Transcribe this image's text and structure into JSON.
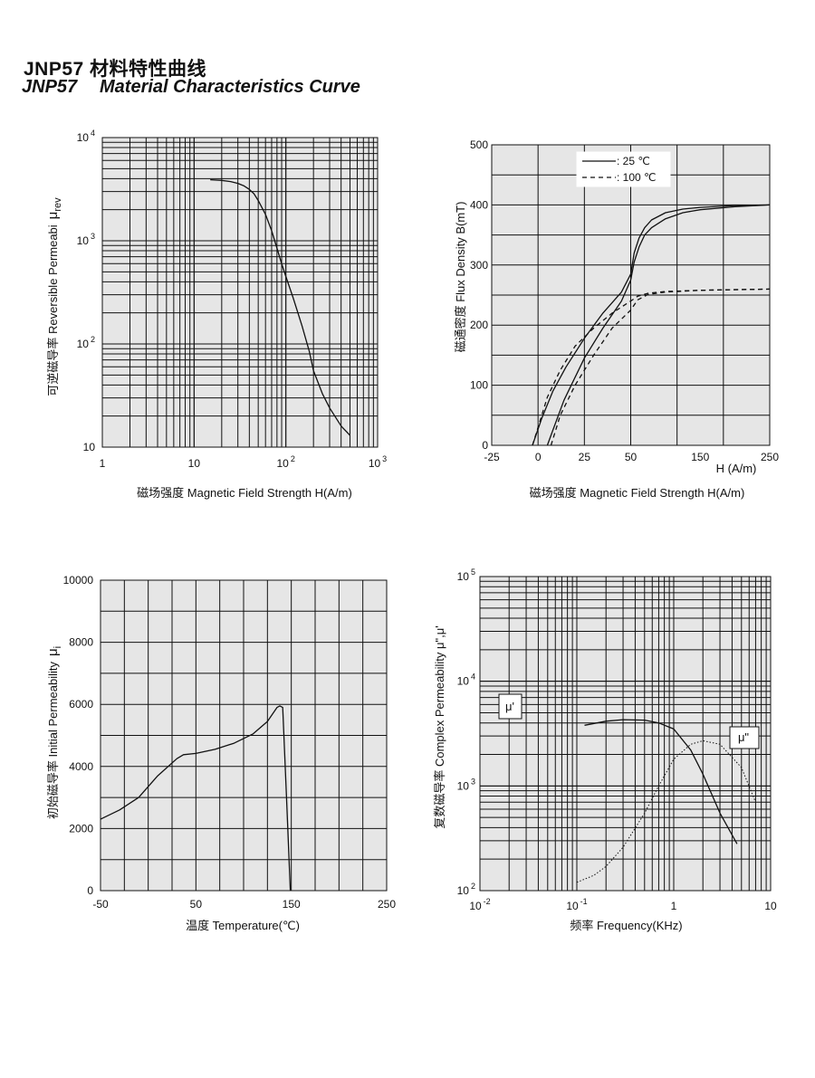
{
  "page": {
    "title_cn": "JNP57  材料特性曲线",
    "title_en_model": "JNP57",
    "title_en_text": "Material Characteristics Curve"
  },
  "chart_data": [
    {
      "type": "line",
      "xscale": "log",
      "yscale": "log",
      "xlim": [
        1,
        1000
      ],
      "ylim": [
        10,
        10000
      ],
      "xticks": [
        {
          "base": "1"
        },
        {
          "base": "10"
        },
        {
          "base": "10",
          "sup": "2"
        },
        {
          "base": "10",
          "sup": "3"
        }
      ],
      "yticks": [
        {
          "base": "10",
          "sup": "4"
        },
        {
          "base": "10",
          "sup": "3"
        },
        {
          "base": "10",
          "sup": "2"
        },
        {
          "base": "10"
        }
      ],
      "xlabel": "磁场强度  Magnetic Field Strength H(A/m)",
      "ylabel_cn": "可逆磁导率",
      "ylabel_en": "Reversible  Permeabi",
      "ylabel_sym": "μ",
      "ylabel_sub": "rev",
      "grid": true,
      "series": [
        {
          "x": [
            15,
            20,
            25,
            30,
            35,
            40,
            45,
            50,
            60,
            70,
            80,
            90,
            100,
            120,
            150,
            180,
            200,
            250,
            300,
            400,
            500
          ],
          "y": [
            3900,
            3850,
            3750,
            3600,
            3400,
            3150,
            2850,
            2450,
            1800,
            1250,
            850,
            600,
            450,
            280,
            150,
            85,
            55,
            33,
            24,
            16,
            13
          ]
        }
      ]
    },
    {
      "type": "line",
      "xlim": [
        -25,
        250
      ],
      "ylim": [
        0,
        500
      ],
      "xticks": [
        "-25",
        "0",
        "25",
        "50",
        "150",
        "250"
      ],
      "yticks": [
        "500",
        "400",
        "300",
        "200",
        "100",
        "0"
      ],
      "xunit": "H (A/m)",
      "xlabel": "磁场强度  Magnetic Field Strength H(A/m)",
      "ylabel_cn": "磁通密度",
      "ylabel_en": "Flux Density B(mT)",
      "grid": true,
      "legend": [
        "  : 25 ℃",
        "  : 100 ℃"
      ],
      "series": [
        {
          "name": ": 25 ℃",
          "style": "solid",
          "x": [
            -3,
            2,
            8,
            15,
            25,
            35,
            45,
            50,
            55,
            62,
            70,
            80,
            100,
            125,
            150,
            200,
            250
          ],
          "y": [
            0,
            45,
            90,
            130,
            178,
            220,
            255,
            285,
            320,
            345,
            362,
            375,
            387,
            393,
            396,
            399,
            400
          ]
        },
        {
          "name": ": 25 ℃",
          "style": "solid",
          "x": [
            5,
            8,
            14,
            25,
            35,
            45,
            50,
            55,
            62,
            70,
            80,
            100,
            125,
            150,
            200,
            250
          ],
          "y": [
            0,
            25,
            75,
            145,
            195,
            240,
            275,
            305,
            330,
            350,
            362,
            377,
            387,
            392,
            397,
            400
          ]
        },
        {
          "name": ": 100 ℃",
          "style": "dashed",
          "x": [
            -3,
            0,
            5,
            12,
            20,
            30,
            40,
            50,
            60,
            75,
            100,
            125,
            150,
            200,
            250
          ],
          "y": [
            0,
            30,
            80,
            125,
            165,
            195,
            220,
            240,
            248,
            253,
            256,
            257,
            258,
            259,
            260
          ]
        },
        {
          "name": ": 100 ℃",
          "style": "dashed",
          "x": [
            7,
            12,
            20,
            30,
            40,
            50,
            60,
            75,
            100,
            150,
            250
          ],
          "y": [
            0,
            50,
            100,
            150,
            195,
            225,
            242,
            251,
            255,
            258,
            260
          ]
        }
      ]
    },
    {
      "type": "line",
      "xlim": [
        -50,
        250
      ],
      "ylim": [
        0,
        10000
      ],
      "xticks": [
        "-50",
        "50",
        "150",
        "250"
      ],
      "yticks": [
        "10000",
        "8000",
        "6000",
        "4000",
        "2000",
        "0"
      ],
      "xlabel": "温度 Temperature(℃)",
      "ylabel_cn": "初始磁导率",
      "ylabel_en": "Initial  Permeability",
      "ylabel_sym": "μ",
      "ylabel_sub": "i",
      "grid": true,
      "series": [
        {
          "x": [
            -50,
            -30,
            -10,
            10,
            30,
            37,
            50,
            70,
            90,
            110,
            125,
            135,
            138,
            141,
            145,
            149
          ],
          "y": [
            2300,
            2600,
            3000,
            3700,
            4250,
            4380,
            4420,
            4550,
            4750,
            5050,
            5450,
            5900,
            5950,
            5900,
            3000,
            0
          ]
        }
      ]
    },
    {
      "type": "line",
      "xscale": "log",
      "yscale": "log",
      "xlim": [
        0.01,
        10
      ],
      "ylim": [
        100,
        100000
      ],
      "xticks": [
        {
          "base": "10",
          "sup": "-2"
        },
        {
          "base": "10",
          "sup": "-1"
        },
        {
          "base": "1"
        },
        {
          "base": "10"
        }
      ],
      "yticks": [
        {
          "base": "10",
          "sup": "5"
        },
        {
          "base": "10",
          "sup": "4"
        },
        {
          "base": "10",
          "sup": "3"
        },
        {
          "base": "10",
          "sup": "2"
        }
      ],
      "xlabel": "频率  Frequency(KHz)",
      "ylabel_cn": "复数磁导率",
      "ylabel_en": "Complex  Permeability μ\",μ'",
      "grid": true,
      "annotations": [
        "μ'",
        "μ\""
      ],
      "series": [
        {
          "name": "μ'",
          "style": "solid",
          "x": [
            0.12,
            0.2,
            0.3,
            0.5,
            0.7,
            1.0,
            1.5,
            2.0,
            3.0,
            4.5
          ],
          "y": [
            3800,
            4150,
            4300,
            4250,
            4000,
            3500,
            2200,
            1300,
            550,
            280
          ]
        },
        {
          "name": "μ\"",
          "style": "dotted",
          "x": [
            0.1,
            0.15,
            0.2,
            0.3,
            0.5,
            0.7,
            1.0,
            1.5,
            2.0,
            3.0,
            5.0,
            7.0
          ],
          "y": [
            120,
            140,
            170,
            260,
            550,
            1000,
            1800,
            2500,
            2700,
            2500,
            1500,
            700
          ]
        }
      ]
    }
  ]
}
